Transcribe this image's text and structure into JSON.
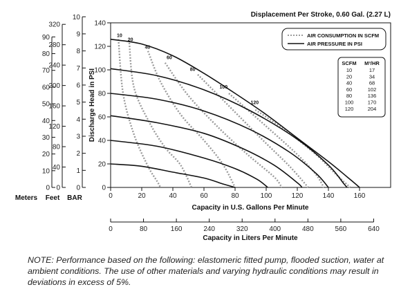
{
  "chart_data": {
    "type": "line",
    "title": "Displacement Per Stroke, 0.60 Gal. (2.27 L)",
    "xlabel": "Capacity in U.S. Gallons Per Minute",
    "ylabel": "Discharge Head in PSI",
    "xlim": [
      0,
      180
    ],
    "ylim": [
      0,
      140
    ],
    "x_ticks": [
      0,
      20,
      40,
      60,
      80,
      100,
      120,
      140,
      160
    ],
    "y_ticks": [
      0,
      20,
      40,
      60,
      80,
      100,
      120,
      140
    ],
    "secondary_x": {
      "label": "Capacity in Liters Per Minute",
      "ticks": [
        0,
        80,
        160,
        240,
        320,
        400,
        480,
        560,
        640
      ]
    },
    "left_axes": [
      {
        "label": "Meters",
        "ticks": [
          0,
          10,
          20,
          30,
          40,
          50,
          60,
          70,
          80,
          90
        ]
      },
      {
        "label": "Feet",
        "ticks": [
          0,
          40,
          80,
          120,
          160,
          200,
          240,
          280,
          320
        ]
      },
      {
        "label": "BAR",
        "ticks": [
          0,
          1,
          2,
          3,
          4,
          5,
          6,
          7,
          8,
          9,
          10
        ]
      }
    ],
    "legend": {
      "position": "top-right",
      "entries": [
        {
          "label": "AIR CONSUMPTION IN SCFM",
          "style": "dotted",
          "color": "#9a9a9a"
        },
        {
          "label": "AIR PRESSURE IN PSI",
          "style": "solid",
          "color": "#111111"
        }
      ]
    },
    "conversion_table": {
      "headers": [
        "SCFM",
        "M³/HR"
      ],
      "rows": [
        [
          "10",
          "17"
        ],
        [
          "20",
          "34"
        ],
        [
          "40",
          "68"
        ],
        [
          "60",
          "102"
        ],
        [
          "80",
          "136"
        ],
        [
          "100",
          "170"
        ],
        [
          "120",
          "204"
        ]
      ]
    },
    "series": [
      {
        "style": "solid",
        "points": [
          [
            0,
            20
          ],
          [
            20,
            18
          ],
          [
            40,
            13
          ],
          [
            60,
            8
          ],
          [
            72,
            3
          ],
          [
            80,
            0
          ]
        ]
      },
      {
        "style": "solid",
        "points": [
          [
            0,
            40
          ],
          [
            30,
            35
          ],
          [
            60,
            25
          ],
          [
            80,
            16
          ],
          [
            94,
            7
          ],
          [
            101,
            0
          ]
        ]
      },
      {
        "style": "solid",
        "points": [
          [
            0,
            61
          ],
          [
            30,
            55
          ],
          [
            60,
            46
          ],
          [
            85,
            33
          ],
          [
            105,
            19
          ],
          [
            120,
            4
          ],
          [
            123,
            0
          ]
        ]
      },
      {
        "style": "solid",
        "points": [
          [
            0,
            80
          ],
          [
            30,
            75
          ],
          [
            60,
            65
          ],
          [
            90,
            49
          ],
          [
            115,
            30
          ],
          [
            132,
            12
          ],
          [
            140,
            0
          ]
        ]
      },
      {
        "style": "solid",
        "points": [
          [
            0,
            101
          ],
          [
            30,
            95
          ],
          [
            60,
            83
          ],
          [
            90,
            65
          ],
          [
            120,
            41
          ],
          [
            140,
            19
          ],
          [
            150,
            3
          ],
          [
            152,
            0
          ]
        ]
      },
      {
        "style": "solid",
        "points": [
          [
            0,
            126
          ],
          [
            20,
            122
          ],
          [
            40,
            112
          ],
          [
            60,
            97
          ],
          [
            80,
            80
          ],
          [
            100,
            62
          ],
          [
            120,
            42
          ],
          [
            140,
            22
          ],
          [
            152,
            9
          ],
          [
            160,
            0
          ]
        ]
      }
    ],
    "air_consumption": [
      {
        "scfm_label": "10",
        "points": [
          [
            5,
            126
          ],
          [
            8,
            80
          ],
          [
            15,
            45
          ],
          [
            24,
            18
          ],
          [
            30,
            5
          ],
          [
            32,
            0
          ]
        ]
      },
      {
        "scfm_label": "20",
        "points": [
          [
            12,
            123
          ],
          [
            15,
            85
          ],
          [
            25,
            55
          ],
          [
            35,
            34
          ],
          [
            45,
            19
          ],
          [
            52,
            0
          ]
        ]
      },
      {
        "scfm_label": "40",
        "points": [
          [
            24,
            116
          ],
          [
            32,
            90
          ],
          [
            45,
            62
          ],
          [
            60,
            40
          ],
          [
            72,
            20
          ],
          [
            80,
            0
          ]
        ]
      },
      {
        "scfm_label": "60",
        "points": [
          [
            35,
            106
          ],
          [
            50,
            78
          ],
          [
            70,
            50
          ],
          [
            88,
            28
          ],
          [
            105,
            9
          ],
          [
            110,
            0
          ]
        ]
      },
      {
        "scfm_label": "80",
        "points": [
          [
            56,
            96
          ],
          [
            80,
            64
          ],
          [
            98,
            40
          ],
          [
            115,
            18
          ],
          [
            127,
            0
          ]
        ]
      },
      {
        "scfm_label": "100",
        "points": [
          [
            76,
            80
          ],
          [
            100,
            52
          ],
          [
            120,
            28
          ],
          [
            132,
            11
          ],
          [
            137,
            0
          ]
        ]
      },
      {
        "scfm_label": "120",
        "points": [
          [
            93,
            66
          ],
          [
            112,
            49
          ],
          [
            132,
            28
          ],
          [
            145,
            11
          ],
          [
            154,
            0
          ]
        ]
      }
    ],
    "curve_labels": [
      {
        "text": "10",
        "x": 4,
        "y": 128
      },
      {
        "text": "20",
        "x": 11,
        "y": 124.5
      },
      {
        "text": "40",
        "x": 22,
        "y": 118
      },
      {
        "text": "60",
        "x": 36,
        "y": 109
      },
      {
        "text": "80",
        "x": 51,
        "y": 99
      },
      {
        "text": "100",
        "x": 70,
        "y": 84
      },
      {
        "text": "120",
        "x": 90,
        "y": 71
      }
    ],
    "grid": false
  },
  "note": "NOTE: Performance based on the following: elastomeric fitted pump, flooded suction, water at ambient conditions. The use of other materials and varying hydraulic conditions may result in deviations in excess of 5%."
}
